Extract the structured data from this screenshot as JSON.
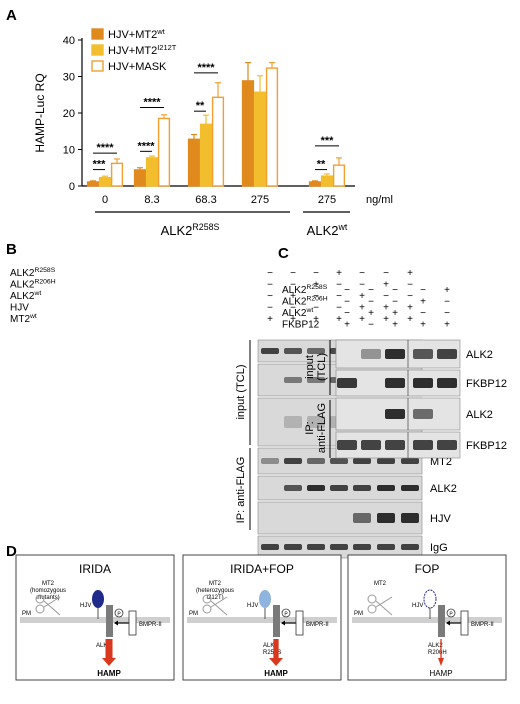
{
  "panels": {
    "a": "A",
    "b": "B",
    "c": "C",
    "d": "D"
  },
  "colors": {
    "mt2_wt": "#E08A1E",
    "mt2_i212t": "#F3BE2E",
    "mask": "#F0A030",
    "gel_bg": "#d9d9d9",
    "band": "#1a1a1a",
    "arrow_red": "#d9381e"
  },
  "chart_data": {
    "type": "bar",
    "ylabel": "HAMP-Luc RQ",
    "ylim": [
      0,
      40
    ],
    "yticks": [
      "0",
      "10",
      "20",
      "30",
      "40"
    ],
    "categories": [
      "0",
      "8.3",
      "68.3",
      "275",
      "275"
    ],
    "unit_label": "ng/ml",
    "group_labels": [
      {
        "main": "ALK2",
        "sup": "R258S"
      },
      {
        "main": "ALK2",
        "sup": "wt"
      }
    ],
    "legend": [
      {
        "main": "HJV+MT2",
        "sup": "wt"
      },
      {
        "main": "HJV+MT2",
        "sup": "I212T"
      },
      {
        "main": "HJV+MASK",
        "sup": ""
      }
    ],
    "series": [
      {
        "values": [
          1.1,
          4.4,
          12.8,
          28.8,
          1.1
        ],
        "errors": [
          0.3,
          0.6,
          1.3,
          5.0,
          0.3
        ]
      },
      {
        "values": [
          2.3,
          7.7,
          16.9,
          25.7,
          2.7
        ],
        "errors": [
          0.4,
          0.5,
          2.5,
          4.5,
          0.6
        ]
      },
      {
        "values": [
          6.2,
          18.5,
          24.3,
          32.3,
          5.7
        ],
        "errors": [
          1.2,
          1.0,
          4.0,
          1.5,
          2.0
        ]
      }
    ],
    "significance": [
      {
        "group": 0,
        "from": 0,
        "to": 1,
        "label": "***",
        "y": 4.5
      },
      {
        "group": 0,
        "from": 0,
        "to": 2,
        "label": "****",
        "y": 9.0
      },
      {
        "group": 1,
        "from": 0,
        "to": 1,
        "label": "****",
        "y": 9.5
      },
      {
        "group": 1,
        "from": 0,
        "to": 2,
        "label": "****",
        "y": 21.5
      },
      {
        "group": 2,
        "from": 0,
        "to": 1,
        "label": "**",
        "y": 20.5
      },
      {
        "group": 2,
        "from": 0,
        "to": 2,
        "label": "****",
        "y": 31.0
      },
      {
        "group": 4,
        "from": 0,
        "to": 1,
        "label": "**",
        "y": 4.5
      },
      {
        "group": 4,
        "from": 0,
        "to": 2,
        "label": "***",
        "y": 11.0
      }
    ]
  },
  "blot_b": {
    "rows": [
      {
        "main": "ALK2",
        "sup": "R258S",
        "signs": [
          "−",
          "−",
          "−",
          "+",
          "−",
          "−",
          "+"
        ]
      },
      {
        "main": "ALK2",
        "sup": "R206H",
        "signs": [
          "−",
          "−",
          "+",
          "−",
          "−",
          "+",
          "−"
        ]
      },
      {
        "main": "ALK2",
        "sup": "wt",
        "signs": [
          "−",
          "+",
          "−",
          "−",
          "+",
          "−",
          "−"
        ]
      },
      {
        "main": "HJV",
        "sup": "",
        "signs": [
          "−",
          "−",
          "−",
          "−",
          "+",
          "+",
          "+"
        ]
      },
      {
        "main": "MT2",
        "sup": "wt",
        "signs": [
          "+",
          "+",
          "+",
          "+",
          "+",
          "+",
          "+"
        ]
      }
    ],
    "bands": [
      "MT2",
      "ALK2",
      "HJV",
      "MT2",
      "ALK2",
      "HJV",
      "IgG"
    ],
    "section_input": "input (TCL)",
    "section_ip": "IP: anti-FLAG"
  },
  "blot_c": {
    "rows": [
      {
        "main": "ALK2",
        "sup": "R258S",
        "signs": [
          "−",
          "−",
          "−",
          "−",
          "+"
        ]
      },
      {
        "main": "ALK2",
        "sup": "R206H",
        "signs": [
          "−",
          "−",
          "−",
          "+",
          "−"
        ]
      },
      {
        "main": "ALK2",
        "sup": "wt",
        "signs": [
          "−",
          "+",
          "+",
          "−",
          "−"
        ]
      },
      {
        "main": "FKBP12",
        "sup": "",
        "signs": [
          "+",
          "−",
          "+",
          "+",
          "+"
        ]
      }
    ],
    "bands": [
      "ALK2",
      "FKBP12",
      "ALK2",
      "FKBP12"
    ],
    "section_input_1": "input",
    "section_input_2": "(TCL)",
    "section_ip_1": "IP:",
    "section_ip_2": "anti-FLAG"
  },
  "diagram_d": {
    "panels": [
      {
        "title": "IRIDA",
        "mt2_lines": [
          "MT2",
          "(homozygous",
          "mutants)"
        ],
        "pm": "PM",
        "hjv": "HJV",
        "alk": "ALK2",
        "alk_mut": "",
        "bmpr": "BMPR-II",
        "p": "P",
        "hamp": "HAMP"
      },
      {
        "title": "IRIDA+FOP",
        "mt2_lines": [
          "MT2",
          "(heterozygous",
          "I212T)"
        ],
        "pm": "PM",
        "hjv": "HJV",
        "alk": "ALK2",
        "alk_mut": "R258S",
        "bmpr": "BMPR-II",
        "p": "P",
        "hamp": "HAMP"
      },
      {
        "title": "FOP",
        "mt2_lines": [
          "MT2"
        ],
        "pm": "PM",
        "hjv": "HJV",
        "alk": "ALK2",
        "alk_mut": "R206H",
        "bmpr": "BMPR-II",
        "p": "P",
        "hamp": "HAMP"
      }
    ]
  }
}
